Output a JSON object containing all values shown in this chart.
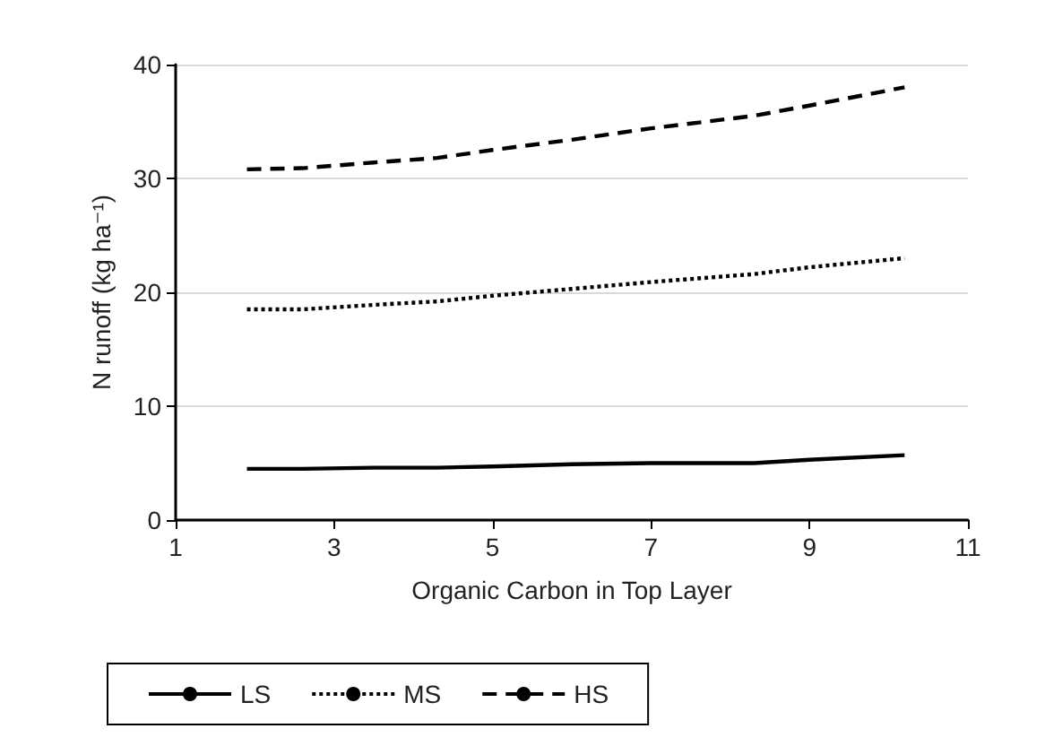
{
  "chart_data": {
    "type": "line",
    "xlabel": "Organic Carbon in Top Layer",
    "ylabel": "N runoff (kg ha⁻¹)",
    "x": [
      1.9,
      2.6,
      3.5,
      4.3,
      5,
      6,
      7,
      8.3,
      9,
      10.2
    ],
    "series": [
      {
        "name": "LS",
        "color": "#000000",
        "line_style": "solid",
        "values": [
          4.5,
          4.5,
          4.6,
          4.6,
          4.7,
          4.9,
          5.0,
          5.0,
          5.3,
          5.7
        ]
      },
      {
        "name": "MS",
        "color": "#000000",
        "line_style": "dotted",
        "values": [
          18.5,
          18.5,
          18.9,
          19.2,
          19.7,
          20.3,
          20.9,
          21.6,
          22.2,
          23.0
        ]
      },
      {
        "name": "HS",
        "color": "#000000",
        "line_style": "dashed",
        "values": [
          30.8,
          30.9,
          31.4,
          31.8,
          32.5,
          33.4,
          34.4,
          35.5,
          36.4,
          38.0
        ]
      }
    ],
    "xlim": [
      1,
      11
    ],
    "xticks": [
      1,
      3,
      5,
      7,
      9,
      11
    ],
    "ylim": [
      0,
      40
    ],
    "yticks": [
      0,
      10,
      20,
      30,
      40
    ],
    "grid": "y",
    "legend": "bottom left",
    "marker": "none"
  }
}
